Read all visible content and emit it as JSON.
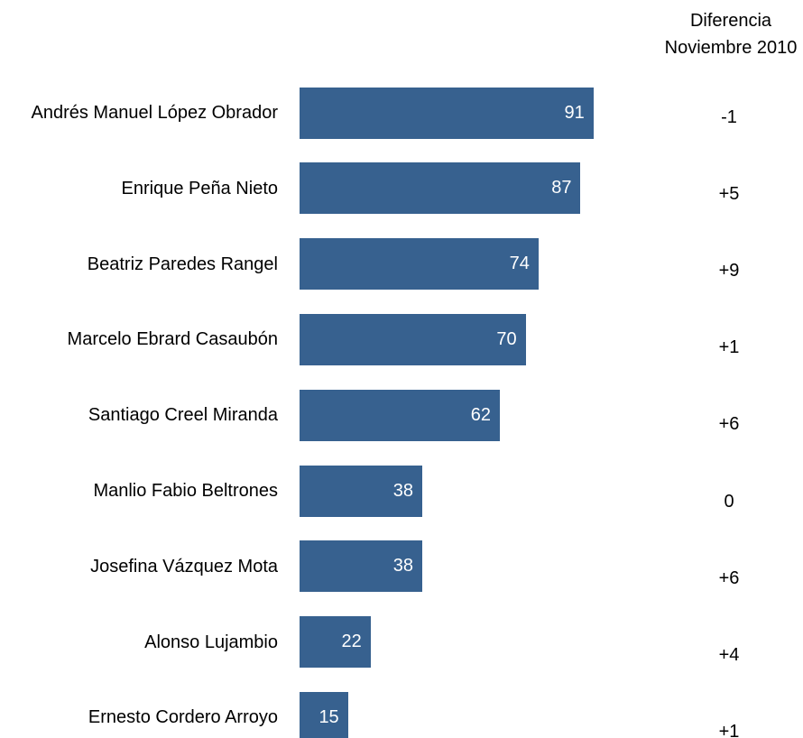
{
  "chart_data": {
    "type": "bar",
    "orientation": "horizontal",
    "categories": [
      "Andrés Manuel López Obrador",
      "Enrique Peña Nieto",
      "Beatriz Paredes Rangel",
      "Marcelo Ebrard Casaubón",
      "Santiago Creel Miranda",
      "Manlio Fabio Beltrones",
      "Josefina Vázquez Mota",
      "Alonso Lujambio",
      "Ernesto Cordero Arroyo"
    ],
    "values": [
      91,
      87,
      74,
      70,
      62,
      38,
      38,
      22,
      15
    ],
    "color": "#37618f",
    "difference_header": "Diferencia Noviembre 2010",
    "differences": [
      "-1",
      "+5",
      "+9",
      "+1",
      "+6",
      "0",
      "+6",
      "+4",
      "+1"
    ]
  }
}
